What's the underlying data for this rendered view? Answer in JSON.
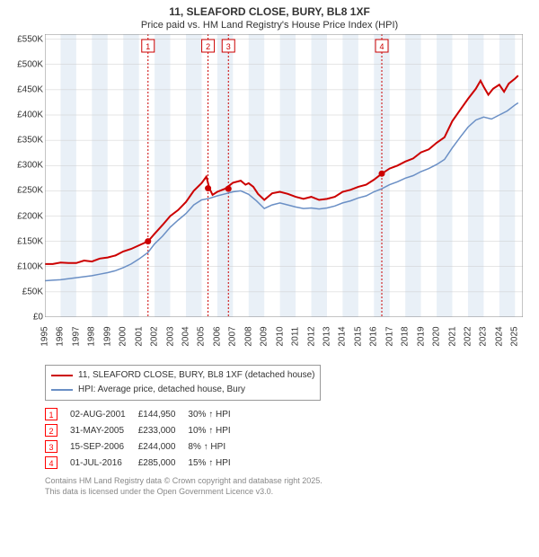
{
  "header": {
    "title": "11, SLEAFORD CLOSE, BURY, BL8 1XF",
    "subtitle": "Price paid vs. HM Land Registry's House Price Index (HPI)"
  },
  "chart": {
    "type": "line",
    "background_color": "#ffffff",
    "grid_color": "#cccccc",
    "band_color": "#e9f0f7",
    "title_fontsize": 12,
    "label_fontsize": 10,
    "x_min": 1995,
    "x_max": 2025.5,
    "x_ticks": [
      1995,
      1996,
      1997,
      1998,
      1999,
      2000,
      2001,
      2002,
      2003,
      2004,
      2005,
      2006,
      2007,
      2008,
      2009,
      2010,
      2011,
      2012,
      2013,
      2014,
      2015,
      2016,
      2017,
      2018,
      2019,
      2020,
      2021,
      2022,
      2023,
      2024,
      2025
    ],
    "y_min": 0,
    "y_max": 560000,
    "y_ticks": [
      0,
      50000,
      100000,
      150000,
      200000,
      250000,
      300000,
      350000,
      400000,
      450000,
      500000,
      550000
    ],
    "y_tick_labels": [
      "£0",
      "£50K",
      "£100K",
      "£150K",
      "£200K",
      "£250K",
      "£300K",
      "£350K",
      "£400K",
      "£450K",
      "£500K",
      "£550K"
    ],
    "events": [
      {
        "num": "1",
        "x": 2001.58
      },
      {
        "num": "2",
        "x": 2005.41
      },
      {
        "num": "3",
        "x": 2006.71
      },
      {
        "num": "4",
        "x": 2016.5
      }
    ],
    "series": [
      {
        "name": "11, SLEAFORD CLOSE, BURY, BL8 1XF (detached house)",
        "color": "#cc0000",
        "line_width": 2,
        "data": [
          [
            1995,
            105000
          ],
          [
            1995.5,
            105000
          ],
          [
            1996,
            108000
          ],
          [
            1996.5,
            107000
          ],
          [
            1997,
            107000
          ],
          [
            1997.5,
            112000
          ],
          [
            1998,
            110000
          ],
          [
            1998.5,
            116000
          ],
          [
            1999,
            118000
          ],
          [
            1999.5,
            122000
          ],
          [
            2000,
            130000
          ],
          [
            2000.5,
            135000
          ],
          [
            2001,
            142000
          ],
          [
            2001.58,
            150000
          ],
          [
            2002,
            165000
          ],
          [
            2002.5,
            182000
          ],
          [
            2003,
            200000
          ],
          [
            2003.5,
            212000
          ],
          [
            2004,
            228000
          ],
          [
            2004.5,
            250000
          ],
          [
            2005,
            265000
          ],
          [
            2005.3,
            278000
          ],
          [
            2005.5,
            255000
          ],
          [
            2005.7,
            242000
          ],
          [
            2006,
            248000
          ],
          [
            2006.5,
            254000
          ],
          [
            2007,
            266000
          ],
          [
            2007.5,
            270000
          ],
          [
            2007.8,
            262000
          ],
          [
            2008,
            265000
          ],
          [
            2008.3,
            258000
          ],
          [
            2008.6,
            244000
          ],
          [
            2009,
            232000
          ],
          [
            2009.5,
            245000
          ],
          [
            2010,
            248000
          ],
          [
            2010.5,
            244000
          ],
          [
            2011,
            238000
          ],
          [
            2011.5,
            234000
          ],
          [
            2012,
            238000
          ],
          [
            2012.5,
            232000
          ],
          [
            2013,
            234000
          ],
          [
            2013.5,
            238000
          ],
          [
            2014,
            248000
          ],
          [
            2014.5,
            252000
          ],
          [
            2015,
            258000
          ],
          [
            2015.5,
            262000
          ],
          [
            2016,
            272000
          ],
          [
            2016.5,
            284000
          ],
          [
            2017,
            294000
          ],
          [
            2017.5,
            300000
          ],
          [
            2018,
            308000
          ],
          [
            2018.5,
            314000
          ],
          [
            2019,
            326000
          ],
          [
            2019.5,
            332000
          ],
          [
            2020,
            345000
          ],
          [
            2020.5,
            356000
          ],
          [
            2021,
            388000
          ],
          [
            2021.5,
            410000
          ],
          [
            2022,
            432000
          ],
          [
            2022.5,
            452000
          ],
          [
            2022.8,
            468000
          ],
          [
            2023,
            456000
          ],
          [
            2023.3,
            440000
          ],
          [
            2023.6,
            452000
          ],
          [
            2024,
            460000
          ],
          [
            2024.3,
            446000
          ],
          [
            2024.6,
            462000
          ],
          [
            2025,
            472000
          ],
          [
            2025.2,
            478000
          ]
        ]
      },
      {
        "name": "HPI: Average price, detached house, Bury",
        "color": "#6a8fc5",
        "line_width": 1.5,
        "data": [
          [
            1995,
            72000
          ],
          [
            1995.5,
            73000
          ],
          [
            1996,
            74000
          ],
          [
            1996.5,
            76000
          ],
          [
            1997,
            78000
          ],
          [
            1997.5,
            80000
          ],
          [
            1998,
            82000
          ],
          [
            1998.5,
            85000
          ],
          [
            1999,
            88000
          ],
          [
            1999.5,
            92000
          ],
          [
            2000,
            98000
          ],
          [
            2000.5,
            105000
          ],
          [
            2001,
            115000
          ],
          [
            2001.58,
            128000
          ],
          [
            2002,
            145000
          ],
          [
            2002.5,
            160000
          ],
          [
            2003,
            178000
          ],
          [
            2003.5,
            192000
          ],
          [
            2004,
            205000
          ],
          [
            2004.5,
            222000
          ],
          [
            2005,
            232000
          ],
          [
            2005.5,
            235000
          ],
          [
            2006,
            240000
          ],
          [
            2006.5,
            244000
          ],
          [
            2007,
            248000
          ],
          [
            2007.5,
            250000
          ],
          [
            2008,
            243000
          ],
          [
            2008.5,
            230000
          ],
          [
            2009,
            215000
          ],
          [
            2009.5,
            222000
          ],
          [
            2010,
            226000
          ],
          [
            2010.5,
            222000
          ],
          [
            2011,
            218000
          ],
          [
            2011.5,
            215000
          ],
          [
            2012,
            216000
          ],
          [
            2012.5,
            214000
          ],
          [
            2013,
            216000
          ],
          [
            2013.5,
            220000
          ],
          [
            2014,
            226000
          ],
          [
            2014.5,
            230000
          ],
          [
            2015,
            236000
          ],
          [
            2015.5,
            240000
          ],
          [
            2016,
            248000
          ],
          [
            2016.5,
            254000
          ],
          [
            2017,
            262000
          ],
          [
            2017.5,
            268000
          ],
          [
            2018,
            275000
          ],
          [
            2018.5,
            280000
          ],
          [
            2019,
            288000
          ],
          [
            2019.5,
            294000
          ],
          [
            2020,
            302000
          ],
          [
            2020.5,
            312000
          ],
          [
            2021,
            335000
          ],
          [
            2021.5,
            356000
          ],
          [
            2022,
            376000
          ],
          [
            2022.5,
            390000
          ],
          [
            2023,
            396000
          ],
          [
            2023.5,
            392000
          ],
          [
            2024,
            400000
          ],
          [
            2024.5,
            408000
          ],
          [
            2025,
            420000
          ],
          [
            2025.2,
            424000
          ]
        ]
      }
    ]
  },
  "legend": {
    "items": [
      {
        "color": "#cc0000",
        "label": "11, SLEAFORD CLOSE, BURY, BL8 1XF (detached house)"
      },
      {
        "color": "#6a8fc5",
        "label": "HPI: Average price, detached house, Bury"
      }
    ]
  },
  "events_table": {
    "rows": [
      {
        "num": "1",
        "date": "02-AUG-2001",
        "price": "£144,950",
        "delta": "30% ↑ HPI"
      },
      {
        "num": "2",
        "date": "31-MAY-2005",
        "price": "£233,000",
        "delta": "10% ↑ HPI"
      },
      {
        "num": "3",
        "date": "15-SEP-2006",
        "price": "£244,000",
        "delta": "8% ↑ HPI"
      },
      {
        "num": "4",
        "date": "01-JUL-2016",
        "price": "£285,000",
        "delta": "15% ↑ HPI"
      }
    ]
  },
  "footer": {
    "line1": "Contains HM Land Registry data © Crown copyright and database right 2025.",
    "line2": "This data is licensed under the Open Government Licence v3.0."
  }
}
